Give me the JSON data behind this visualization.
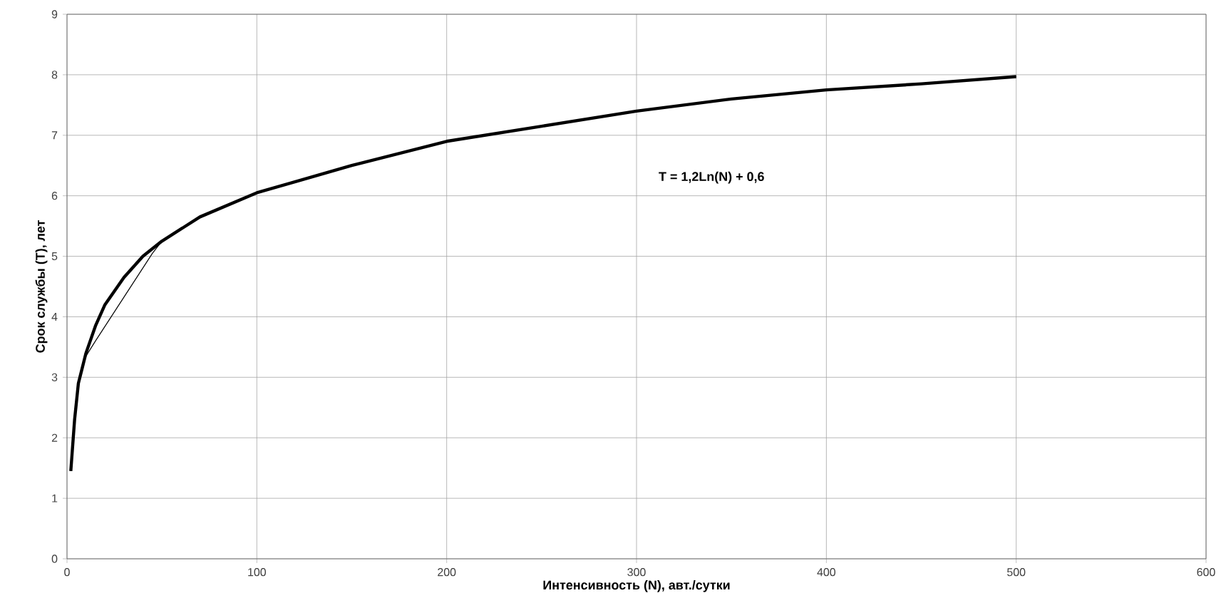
{
  "chart_data": {
    "type": "line",
    "xlabel": "Интенсивность (N), авт./сутки",
    "ylabel": "Срок службы (T), лет",
    "annotations": [
      "T = 1,2Ln(N) + 0,6"
    ],
    "xlim": [
      0,
      600
    ],
    "xticks": [
      0,
      100,
      200,
      300,
      400,
      500,
      600
    ],
    "ylim": [
      0,
      9
    ],
    "yticks": [
      0,
      1,
      2,
      3,
      4,
      5,
      6,
      7,
      8,
      9
    ],
    "grid": true,
    "marker": "none",
    "series": [
      {
        "color": "#000000",
        "line_style": "solid",
        "x": [
          2,
          4,
          6,
          8,
          10,
          15,
          45,
          50,
          70,
          100,
          150,
          200,
          250,
          300,
          350,
          400,
          450,
          500
        ],
        "values": [
          1.45,
          2.3,
          2.9,
          3.15,
          3.35,
          3.6,
          5.05,
          5.25,
          5.65,
          6.05,
          6.5,
          6.9,
          7.15,
          7.4,
          7.6,
          7.75,
          7.85,
          7.97
        ]
      },
      {
        "color": "#000000",
        "line_style": "solid",
        "x": [
          2,
          4,
          6,
          8,
          10,
          15,
          20,
          30,
          40,
          50,
          70,
          100,
          150,
          200,
          250,
          300,
          350,
          400,
          450,
          500
        ],
        "values": [
          1.45,
          2.3,
          2.9,
          3.15,
          3.4,
          3.85,
          4.2,
          4.65,
          5.0,
          5.25,
          5.65,
          6.05,
          6.5,
          6.9,
          7.15,
          7.4,
          7.6,
          7.75,
          7.85,
          7.97
        ]
      }
    ]
  }
}
